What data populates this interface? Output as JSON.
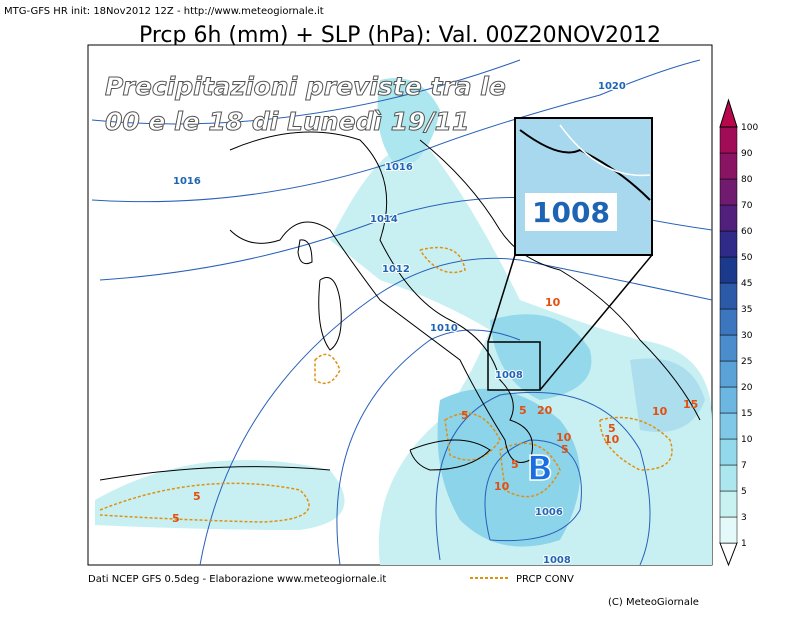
{
  "header": {
    "model_line": "MTG-GFS HR init: 18Nov2012 12Z - http://www.meteogiornale.it",
    "title": "Prcp 6h (mm) + SLP (hPa): Val. 00Z20NOV2012"
  },
  "overlay": {
    "line1": "Precipitazioni previste tra le",
    "line2": "00 e le 18 di Lunedì 19/11"
  },
  "isobars": [
    "1020",
    "1016",
    "1016",
    "1014",
    "1012",
    "1010",
    "1008",
    "1006",
    "1008"
  ],
  "inset": {
    "label": "1008"
  },
  "precip_labels": [
    "10",
    "20",
    "15",
    "10",
    "5",
    "10",
    "5",
    "10",
    "5",
    "5",
    "10",
    "5",
    "5",
    "5"
  ],
  "low": "B",
  "colorbar": {
    "labels": [
      "1",
      "3",
      "5",
      "7",
      "10",
      "15",
      "20",
      "25",
      "30",
      "35",
      "45",
      "50",
      "60",
      "70",
      "80",
      "90",
      "100"
    ],
    "colors": [
      "#ffffff",
      "#e4fafa",
      "#c8f2f2",
      "#ace6ee",
      "#94d8ec",
      "#80c8e8",
      "#6cb6e2",
      "#5aa2d8",
      "#4a8ccc",
      "#3c76be",
      "#2c5aa8",
      "#1c3a8c",
      "#302a88",
      "#50207c",
      "#701a70",
      "#8a1464",
      "#a00c58",
      "#b8084c"
    ]
  },
  "footer": {
    "source": "Dati NCEP GFS 0.5deg - Elaborazione www.meteogiornale.it",
    "legend": "PRCP CONV",
    "copyright": "(C) MeteoGiornale"
  }
}
